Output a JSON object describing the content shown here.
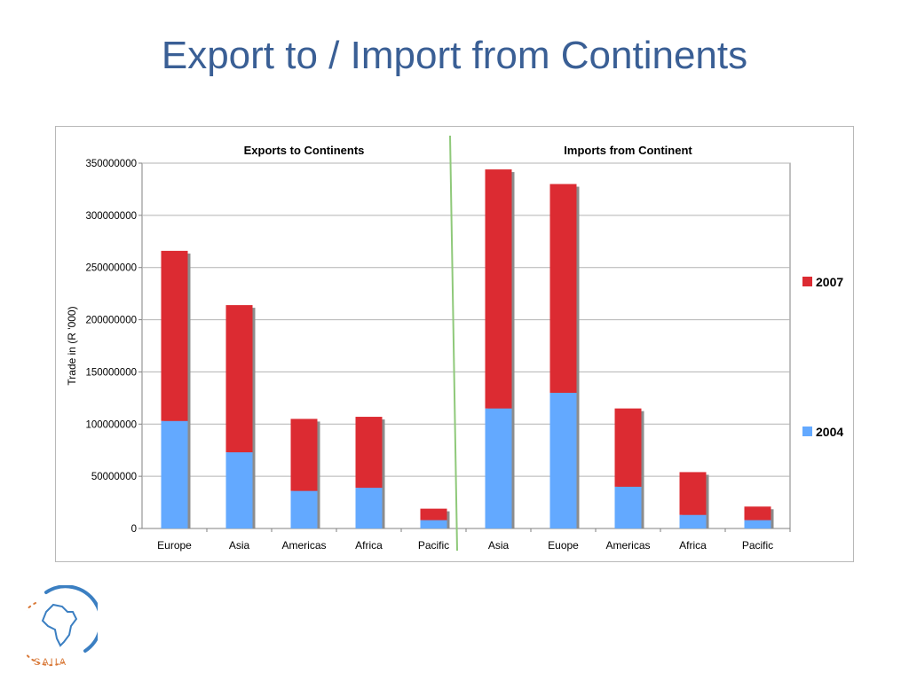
{
  "slide": {
    "title": "Export to / Import from Continents"
  },
  "logo": {
    "text": "SAIIA"
  },
  "colors": {
    "s2004": "#63a9ff",
    "s2007": "#dc2b32",
    "title": "#3a5f95",
    "divider": "#8fc97a"
  },
  "chart_data": {
    "type": "bar",
    "stacked": true,
    "panel_titles": [
      "Exports to Continents",
      "Imports from Continent"
    ],
    "categories": [
      "Europe",
      "Asia",
      "Americas",
      "Africa",
      "Pacific",
      "Asia",
      "Euope",
      "Americas",
      "Africa",
      "Pacific"
    ],
    "series": [
      {
        "name": "2004",
        "values": [
          103000000,
          73000000,
          36000000,
          39000000,
          8000000,
          115000000,
          130000000,
          40000000,
          13000000,
          8000000
        ]
      },
      {
        "name": "2007",
        "values": [
          163000000,
          141000000,
          69000000,
          68000000,
          11000000,
          229000000,
          200000000,
          75000000,
          41000000,
          13000000
        ]
      }
    ],
    "ylabel": "Trade in  (R '000)",
    "ylim": [
      0,
      350000000
    ],
    "yticks": [
      "0",
      "50000000",
      "100000000",
      "150000000",
      "200000000",
      "250000000",
      "300000000",
      "350000000"
    ],
    "grid": true,
    "legend": [
      "2007",
      "2004"
    ],
    "legend_position": "right"
  }
}
